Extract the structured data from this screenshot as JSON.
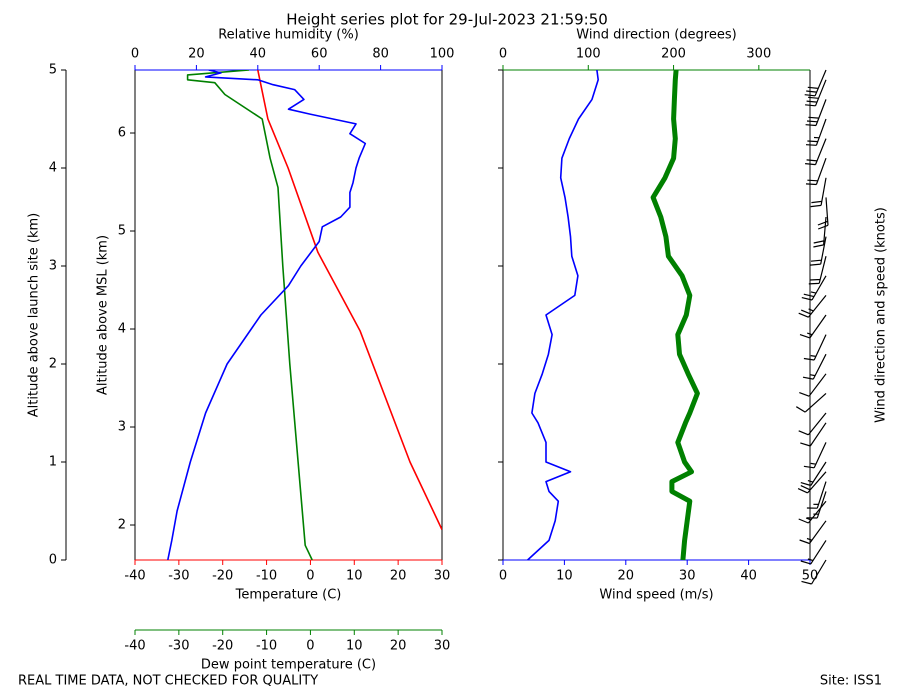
{
  "title": "Height series plot for 29-Jul-2023 21:59:50",
  "footer_left": "REAL TIME DATA, NOT CHECKED FOR QUALITY",
  "footer_right": "Site: ISS1",
  "chart_data": [
    {
      "type": "line",
      "ylabel": "Altitude above launch site (km)",
      "ylim": [
        0,
        5
      ],
      "yticks": [
        0,
        1,
        2,
        3,
        4,
        5
      ],
      "y2label": "Altitude above MSL (km)",
      "y2lim": [
        1.643,
        6.643
      ],
      "y2ticks": [
        2,
        3,
        4,
        5,
        6
      ],
      "axes": {
        "humidity": {
          "label": "Relative humidity (%)",
          "lim": [
            0,
            100
          ],
          "ticks": [
            0,
            20,
            40,
            60,
            80,
            100
          ],
          "color": "#0000ff",
          "position": "top"
        },
        "temperature": {
          "label": "Temperature (C)",
          "lim": [
            -40,
            30
          ],
          "ticks": [
            -40,
            -30,
            -20,
            -10,
            0,
            10,
            20,
            30
          ],
          "color": "#ff0000",
          "position": "bottom"
        },
        "dewpoint": {
          "label": "Dew point temperature (C)",
          "lim": [
            -40,
            30
          ],
          "ticks": [
            -40,
            -30,
            -20,
            -10,
            0,
            10,
            20,
            30
          ],
          "color": "#008000",
          "position": "bottom2"
        }
      },
      "series": [
        {
          "axis": "temperature",
          "color": "#ff0000",
          "altitude": [
            0.31,
            1,
            2.34,
            3.14,
            4,
            4.5,
            5
          ],
          "values": [
            30,
            22.7,
            11.3,
            1.7,
            -5.1,
            -9.7,
            -12
          ]
        },
        {
          "axis": "dewpoint",
          "color": "#008000",
          "altitude": [
            0,
            0.15,
            1,
            2,
            3,
            3.8,
            4.1,
            4.5,
            4.75,
            4.87,
            4.9,
            4.95,
            5
          ],
          "values": [
            0.4,
            -1.2,
            -2.8,
            -4.7,
            -6.3,
            -7.4,
            -9.2,
            -11,
            -19.5,
            -21.8,
            -28,
            -28,
            -14
          ]
        },
        {
          "axis": "humidity",
          "color": "#0000ff",
          "altitude": [
            0,
            0.2,
            0.5,
            1,
            1.5,
            2,
            2.5,
            2.8,
            3.0,
            3.25,
            3.4,
            3.5,
            3.6,
            3.75,
            3.85,
            4.0,
            4.1,
            4.25,
            4.35,
            4.45,
            4.55,
            4.6,
            4.7,
            4.8,
            4.85,
            4.9,
            4.93,
            4.97,
            5
          ],
          "values": [
            10.7,
            12,
            13.7,
            18,
            23,
            30,
            41,
            50,
            54,
            60,
            61,
            67,
            70,
            70,
            71,
            72,
            73,
            75,
            70,
            72,
            57,
            50,
            55,
            52,
            45,
            40,
            23,
            28,
            24
          ]
        }
      ]
    },
    {
      "type": "wind",
      "ylim": [
        0,
        5
      ],
      "yticks": [
        0,
        1,
        2,
        3,
        4,
        5
      ],
      "xlabel": "Wind speed (m/s)",
      "xlim": [
        0,
        50
      ],
      "xticks": [
        0,
        10,
        20,
        30,
        40,
        50
      ],
      "speed_color": "#0000ff",
      "x2label": "Wind direction (degrees)",
      "x2lim": [
        0,
        360
      ],
      "x2ticks": [
        0,
        100,
        200,
        300
      ],
      "direction_color": "#008000",
      "barb_label": "Wind direction and speed (knots)",
      "altitude": [
        0,
        0.2,
        0.4,
        0.6,
        0.7,
        0.8,
        0.9,
        1.0,
        1.2,
        1.4,
        1.5,
        1.7,
        1.9,
        2.1,
        2.3,
        2.5,
        2.7,
        2.9,
        3.1,
        3.3,
        3.5,
        3.7,
        3.9,
        4.1,
        4.3,
        4.5,
        4.7,
        4.9,
        5.0
      ],
      "speed": [
        4,
        7.5,
        8.5,
        9,
        7.5,
        7,
        11,
        7,
        7,
        5.7,
        4.7,
        5.2,
        6.4,
        7.4,
        8,
        7,
        11.7,
        12.2,
        11.2,
        11,
        10.6,
        10.1,
        9.4,
        9.6,
        10.8,
        12.3,
        14.5,
        15.5,
        15.3
      ],
      "direction": [
        211,
        213,
        216,
        219,
        198,
        198,
        221,
        213,
        205,
        214,
        219,
        228,
        217,
        207,
        205,
        215,
        219,
        210,
        194,
        191,
        185,
        176,
        190,
        200,
        202,
        200,
        201,
        202,
        203
      ]
    }
  ]
}
